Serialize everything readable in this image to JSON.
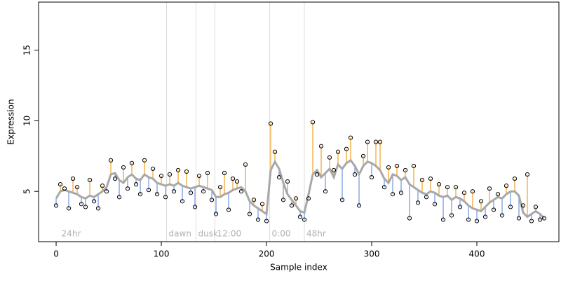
{
  "chart_data": {
    "type": "residual-scatter",
    "x_label": "Sample index",
    "y_label": "Expression",
    "xlim": [
      -16.7,
      478
    ],
    "ylim": [
      1.44,
      18.4
    ],
    "xticks": [
      0,
      100,
      200,
      300,
      400
    ],
    "yticks": [
      5,
      10,
      15
    ],
    "x": [
      0,
      4,
      8,
      12,
      16,
      20,
      24,
      28,
      32,
      36,
      40,
      44,
      48,
      52,
      56,
      60,
      64,
      68,
      72,
      76,
      80,
      84,
      88,
      92,
      96,
      100,
      104,
      108,
      112,
      116,
      120,
      124,
      128,
      132,
      136,
      140,
      144,
      148,
      152,
      156,
      160,
      164,
      168,
      172,
      176,
      180,
      184,
      188,
      192,
      196,
      200,
      204,
      208,
      212,
      216,
      220,
      224,
      228,
      232,
      236,
      240,
      244,
      248,
      252,
      256,
      260,
      264,
      268,
      272,
      276,
      280,
      284,
      288,
      292,
      296,
      300,
      304,
      308,
      312,
      316,
      320,
      324,
      328,
      332,
      336,
      340,
      344,
      348,
      352,
      356,
      360,
      364,
      368,
      372,
      376,
      380,
      384,
      388,
      392,
      396,
      400,
      404,
      408,
      412,
      416,
      420,
      424,
      428,
      432,
      436,
      440,
      444,
      448,
      452,
      456,
      460,
      464
    ],
    "values": [
      4.0,
      5.5,
      5.2,
      3.8,
      5.9,
      5.3,
      4.1,
      3.9,
      5.8,
      4.3,
      3.8,
      5.4,
      5.0,
      7.2,
      5.9,
      4.6,
      6.7,
      5.2,
      7.0,
      5.5,
      4.8,
      7.2,
      5.1,
      6.6,
      4.8,
      6.1,
      4.6,
      6.2,
      5.0,
      6.5,
      4.3,
      6.4,
      4.9,
      3.9,
      6.1,
      5.0,
      6.3,
      4.4,
      3.4,
      5.3,
      6.3,
      3.7,
      5.9,
      5.7,
      5.0,
      6.9,
      3.4,
      4.4,
      3.0,
      4.1,
      2.9,
      9.8,
      7.8,
      6.0,
      4.4,
      5.7,
      4.0,
      4.5,
      3.2,
      3.0,
      4.5,
      9.9,
      6.2,
      8.2,
      5.0,
      7.4,
      6.5,
      7.8,
      4.4,
      8.0,
      8.8,
      6.2,
      4.0,
      7.5,
      8.5,
      6.0,
      8.5,
      8.5,
      5.3,
      6.7,
      4.8,
      6.8,
      4.9,
      6.5,
      3.1,
      6.8,
      4.2,
      5.8,
      4.6,
      5.9,
      4.1,
      5.5,
      3.0,
      5.3,
      3.3,
      5.3,
      3.9,
      4.9,
      3.0,
      5.0,
      2.9,
      4.3,
      3.2,
      5.2,
      3.7,
      4.8,
      3.3,
      5.4,
      3.9,
      5.9,
      3.1,
      4.0,
      6.2,
      2.9,
      3.9,
      3.0,
      3.1
    ],
    "smooth_values": [
      4.5,
      5.0,
      5.1,
      5.0,
      4.9,
      4.8,
      4.6,
      4.5,
      4.7,
      4.6,
      4.8,
      5.0,
      5.3,
      6.2,
      6.3,
      5.8,
      5.6,
      6.0,
      6.2,
      5.9,
      5.8,
      6.2,
      6.0,
      5.9,
      5.6,
      5.5,
      5.4,
      5.5,
      5.4,
      5.6,
      5.4,
      5.3,
      5.2,
      5.3,
      5.4,
      5.3,
      5.2,
      5.1,
      4.6,
      4.6,
      4.8,
      4.9,
      5.1,
      5.2,
      5.3,
      5.0,
      4.3,
      4.0,
      3.8,
      3.6,
      3.4,
      6.5,
      7.1,
      6.6,
      5.6,
      4.8,
      4.4,
      4.0,
      3.6,
      3.5,
      4.8,
      6.2,
      6.5,
      6.0,
      6.3,
      6.6,
      6.0,
      6.9,
      6.6,
      7.0,
      7.2,
      6.8,
      6.2,
      6.8,
      7.1,
      7.0,
      6.8,
      6.5,
      5.9,
      5.6,
      6.2,
      6.1,
      5.8,
      6.0,
      5.5,
      5.3,
      5.1,
      4.9,
      4.8,
      5.0,
      4.9,
      4.7,
      4.6,
      4.7,
      4.4,
      4.6,
      4.5,
      4.3,
      4.0,
      3.8,
      3.7,
      3.6,
      3.9,
      4.2,
      4.4,
      4.6,
      4.5,
      4.8,
      5.0,
      5.0,
      4.7,
      3.5,
      3.2,
      3.4,
      3.6,
      3.4,
      3.1
    ],
    "colors": {
      "above": "#f0a020",
      "below": "#6f95dc",
      "smooth": "#a8a8a8",
      "marker_line": "#dddddd",
      "marker_text": "#b0b0b0"
    },
    "markers": [
      {
        "x": 3,
        "label": "24hr",
        "line": false
      },
      {
        "x": 105,
        "label": "dawn",
        "line": true
      },
      {
        "x": 133,
        "label": "dusk",
        "line": true
      },
      {
        "x": 151,
        "label": "12:00",
        "line": true
      },
      {
        "x": 203,
        "label": "0:00",
        "line": true
      },
      {
        "x": 236,
        "label": "48hr",
        "line": true
      }
    ]
  }
}
